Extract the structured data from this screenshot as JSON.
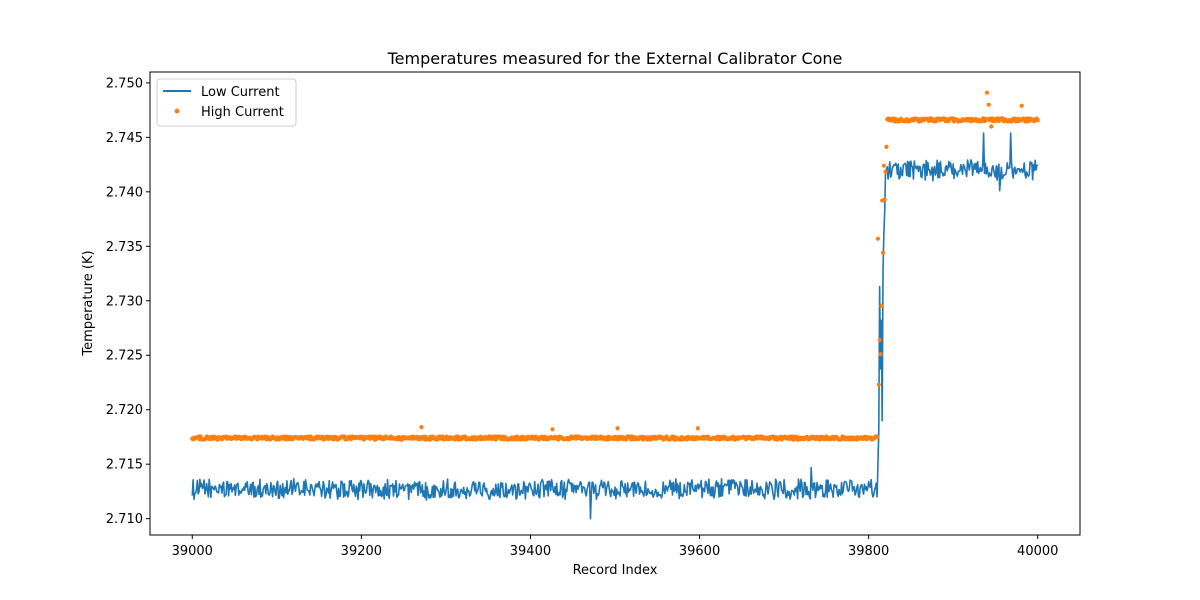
{
  "chart_data": {
    "type": "line",
    "title": "Temperatures measured for the External Calibrator Cone",
    "xlabel": "Record Index",
    "ylabel": "Temperature (K)",
    "xlim": [
      38950,
      40050
    ],
    "ylim": [
      2.7085,
      2.751
    ],
    "xticks": [
      39000,
      39200,
      39400,
      39600,
      39800,
      40000
    ],
    "xtick_labels": [
      "39000",
      "39200",
      "39400",
      "39600",
      "39800",
      "40000"
    ],
    "yticks": [
      2.71,
      2.715,
      2.72,
      2.725,
      2.73,
      2.735,
      2.74,
      2.745,
      2.75
    ],
    "ytick_labels": [
      "2.710",
      "2.715",
      "2.720",
      "2.725",
      "2.730",
      "2.735",
      "2.740",
      "2.745",
      "2.750"
    ],
    "legend_position": "top-left",
    "series": [
      {
        "name": "Low Current",
        "style": "line",
        "color": "#1f77b4",
        "x_start": 39000,
        "x_end": 40000,
        "n_points": 1001,
        "transition_index": 39810,
        "transition_end_index": 39820,
        "baseline_before": 2.7127,
        "baseline_after": 2.742,
        "noise": 0.0008,
        "notable": [
          {
            "x": 39471,
            "y": 2.71
          },
          {
            "x": 39732,
            "y": 2.7147
          },
          {
            "x": 39813,
            "y": 2.7313
          },
          {
            "x": 39816,
            "y": 2.719
          },
          {
            "x": 39936,
            "y": 2.7454
          },
          {
            "x": 39968,
            "y": 2.7454
          },
          {
            "x": 39955,
            "y": 2.7401
          }
        ]
      },
      {
        "name": "High Current",
        "style": "scatter",
        "color": "#ff7f0e",
        "x_start": 39000,
        "x_end": 40000,
        "n_points": 1001,
        "transition_index": 39810,
        "transition_end_index": 39822,
        "baseline_before": 2.7174,
        "baseline_after": 2.7466,
        "noise": 0.00015,
        "notable": [
          {
            "x": 39271,
            "y": 2.7184
          },
          {
            "x": 39426,
            "y": 2.7182
          },
          {
            "x": 39503,
            "y": 2.7183
          },
          {
            "x": 39598,
            "y": 2.7183
          },
          {
            "x": 39811,
            "y": 2.7357
          },
          {
            "x": 39813,
            "y": 2.7264
          },
          {
            "x": 39814,
            "y": 2.7251
          },
          {
            "x": 39816,
            "y": 2.7392
          },
          {
            "x": 39818,
            "y": 2.7424
          },
          {
            "x": 39940,
            "y": 2.7491
          },
          {
            "x": 39942,
            "y": 2.748
          },
          {
            "x": 39945,
            "y": 2.746
          },
          {
            "x": 39981,
            "y": 2.7479
          }
        ]
      }
    ]
  }
}
